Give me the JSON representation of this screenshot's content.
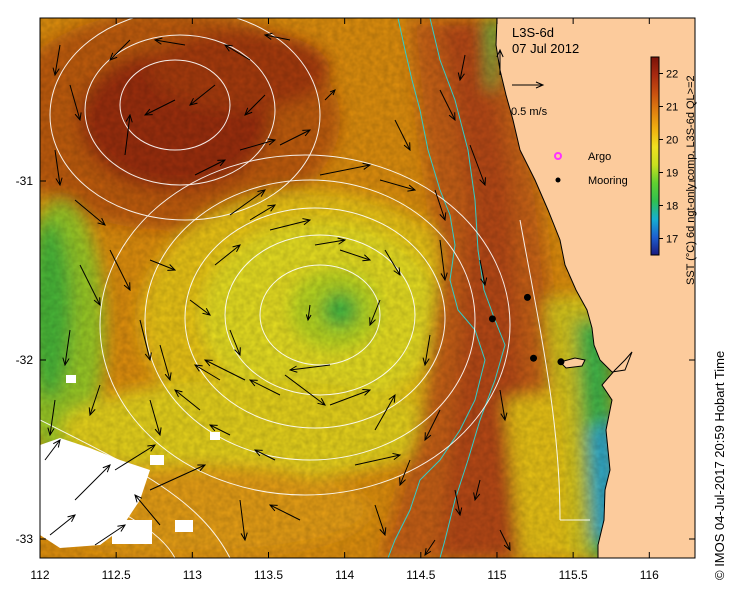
{
  "product": "L3S-6d",
  "date": "07 Jul 2012",
  "scale_label": "0.5 m/s",
  "legend": [
    {
      "label": "Argo",
      "color": "#ff33ff",
      "icon": "argo-ring-icon"
    },
    {
      "label": "Mooring",
      "color": "#000000",
      "icon": "mooring-dot-icon"
    }
  ],
  "colorbar": {
    "title": "SST (°C) 6d ngt-only comp, L3S-6d QL>=2",
    "ticks": [
      "17",
      "18",
      "19",
      "20",
      "21",
      "22"
    ],
    "min": 16.5,
    "max": 22.5,
    "colors": [
      "#1a1a80",
      "#1e60d0",
      "#16b0d0",
      "#30c050",
      "#60d030",
      "#c8e020",
      "#f0e020",
      "#f0b010",
      "#e08010",
      "#c85010",
      "#a82a10",
      "#7a1208"
    ]
  },
  "x_axis": {
    "ticks": [
      "112",
      "112.5",
      "113",
      "113.5",
      "114",
      "114.5",
      "115",
      "115.5",
      "116"
    ]
  },
  "y_axis": {
    "ticks": [
      "-31",
      "-32",
      "-33"
    ]
  },
  "moorings": [
    {
      "lon": 114.97,
      "lat": -31.77
    },
    {
      "lon": 115.2,
      "lat": -31.65
    },
    {
      "lon": 115.24,
      "lat": -31.99
    },
    {
      "lon": 115.42,
      "lat": -32.01
    }
  ],
  "credit": "© IMOS 04-Jul-2017 20:59 Hobart Time",
  "colors": {
    "land": "#fccb9c",
    "shelf": "#33ccc8",
    "contour": "#ffffff",
    "arrow": "#000000"
  }
}
